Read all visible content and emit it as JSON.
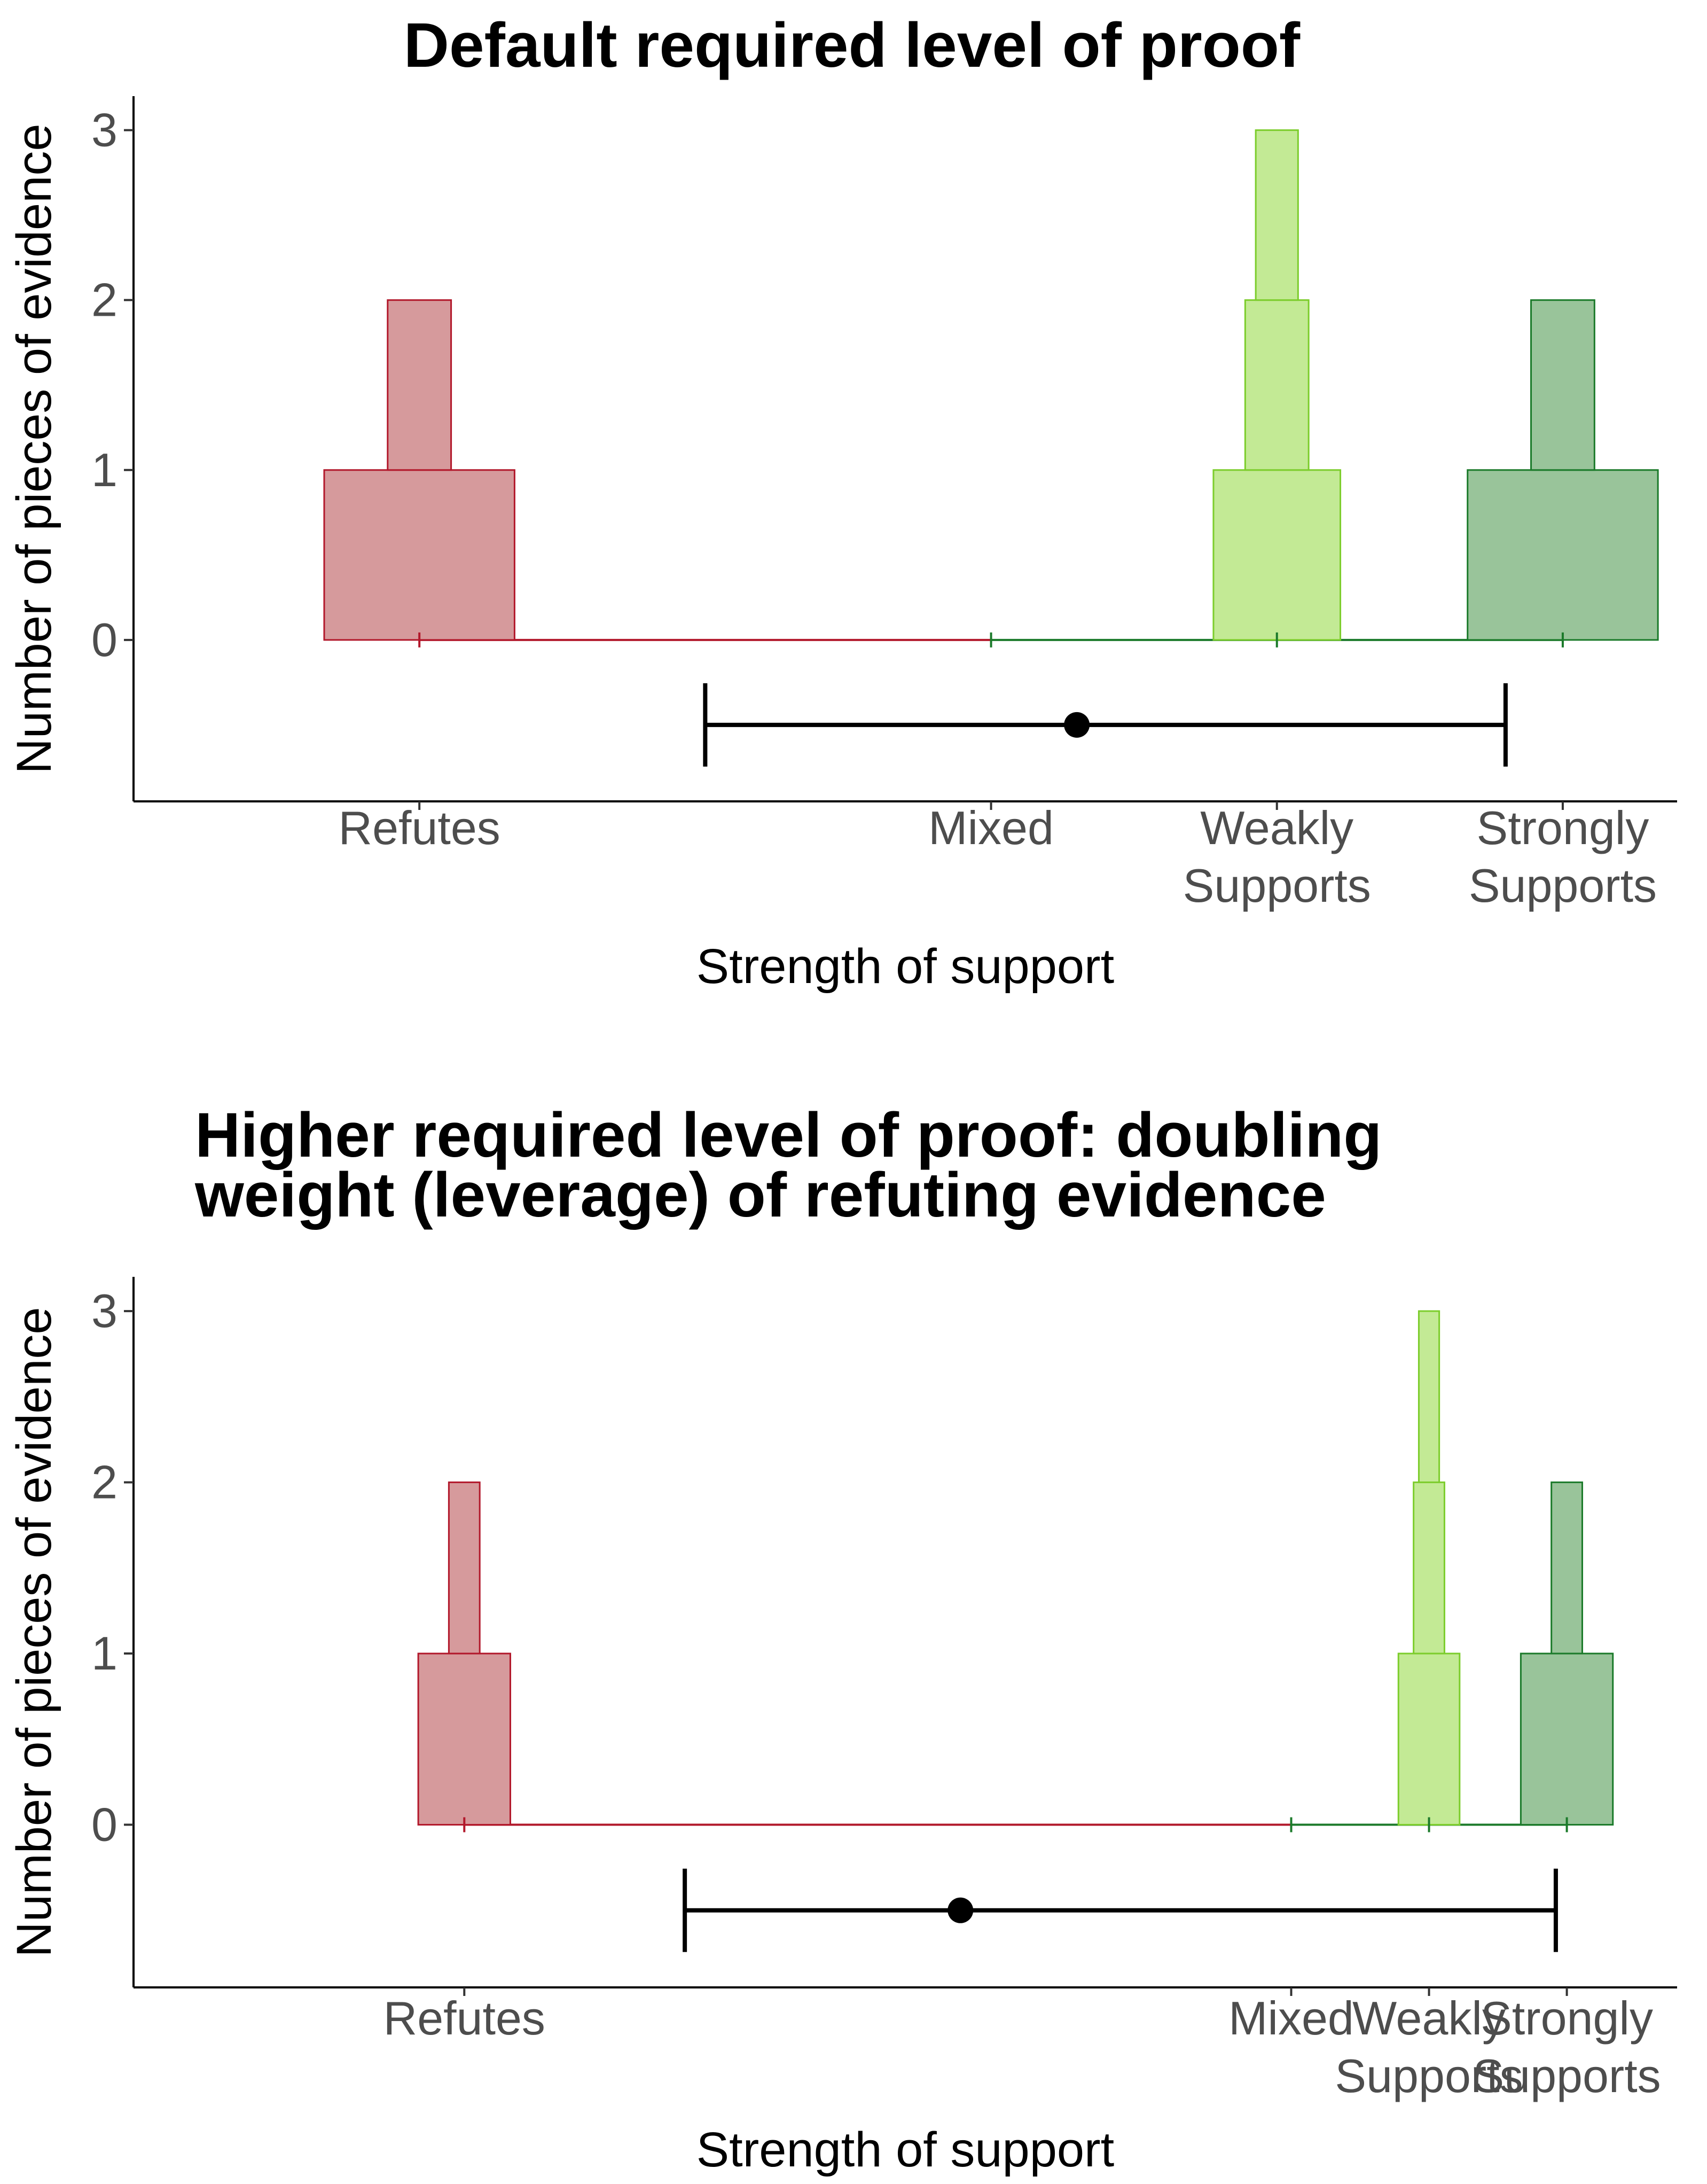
{
  "colors": {
    "refutes": {
      "fill": "#d69a9c",
      "stroke": "#b2182b"
    },
    "weakly_supports": {
      "fill": "#c3ea95",
      "stroke": "#7ccd2c"
    },
    "strongly_supports": {
      "fill": "#99c49a",
      "stroke": "#1b7a2a"
    },
    "baseline_refutes": "#b2182b",
    "baseline_supports": "#1b7a2a",
    "interval": "#000000",
    "tick_label": "#4d4d4d"
  },
  "chart_data": [
    {
      "type": "histogram",
      "title": [
        "Default required level of proof"
      ],
      "xlabel": "Strength of support",
      "ylabel": "Number of pieces of evidence",
      "y_ticks": [
        0,
        1,
        2,
        3
      ],
      "ylim": [
        -0.95,
        3.2
      ],
      "xlim": [
        -0.5,
        2.2
      ],
      "grid": false,
      "x_ticks": [
        {
          "value": 0,
          "label": [
            "Refutes"
          ]
        },
        {
          "value": 1,
          "label": [
            "Mixed"
          ]
        },
        {
          "value": 1.5,
          "label": [
            "Weakly",
            "Supports"
          ]
        },
        {
          "value": 2,
          "label": [
            "Strongly",
            "Supports"
          ]
        }
      ],
      "baseline": {
        "refutes": [
          0,
          1
        ],
        "supports": [
          1,
          2
        ]
      },
      "stacks": [
        {
          "category": "refutes",
          "x": 0,
          "widths": [
            0.333,
            0.111
          ]
        },
        {
          "category": "weakly_supports",
          "x": 1.5,
          "widths": [
            0.222,
            0.111,
            0.074
          ]
        },
        {
          "category": "strongly_supports",
          "x": 2,
          "widths": [
            0.333,
            0.111
          ]
        }
      ],
      "interval": {
        "low": 0.5,
        "point": 1.15,
        "high": 1.9,
        "y": -0.5
      }
    },
    {
      "type": "histogram",
      "title": [
        "Higher required level of proof: doubling",
        "weight (leverage) of refuting evidence"
      ],
      "xlabel": "Strength of support",
      "ylabel": "Number of pieces of evidence",
      "y_ticks": [
        0,
        1,
        2,
        3
      ],
      "ylim": [
        -0.95,
        3.2
      ],
      "xlim": [
        -0.6,
        2.2
      ],
      "grid": false,
      "x_ticks": [
        {
          "value": 0,
          "label": [
            "Refutes"
          ]
        },
        {
          "value": 1.5,
          "label": [
            "Mixed"
          ]
        },
        {
          "value": 1.75,
          "label": [
            "Weakly",
            "Supports"
          ]
        },
        {
          "value": 2,
          "label": [
            "Strongly",
            "Supports"
          ]
        }
      ],
      "baseline": {
        "refutes": [
          0,
          1.5
        ],
        "supports": [
          1.5,
          2
        ]
      },
      "stacks": [
        {
          "category": "refutes",
          "x": 0,
          "widths": [
            0.167,
            0.056
          ]
        },
        {
          "category": "weakly_supports",
          "x": 1.75,
          "widths": [
            0.111,
            0.056,
            0.037
          ]
        },
        {
          "category": "strongly_supports",
          "x": 2,
          "widths": [
            0.167,
            0.056
          ]
        }
      ],
      "interval": {
        "low": 0.4,
        "point": 0.9,
        "high": 1.98,
        "y": -0.5
      }
    }
  ]
}
